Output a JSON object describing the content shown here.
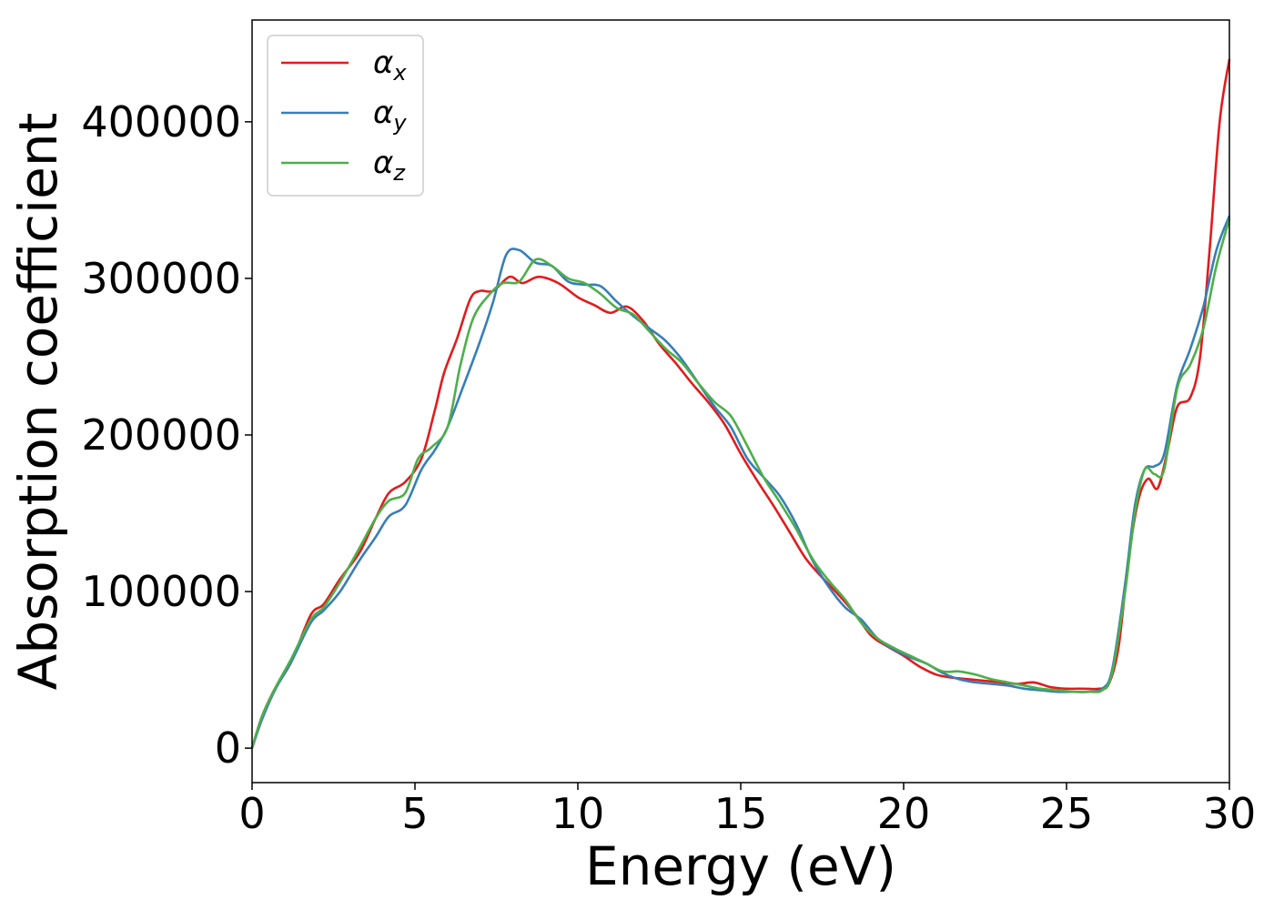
{
  "chart_data": {
    "type": "line",
    "title": "",
    "xlabel": "Energy (eV)",
    "ylabel": "Absorption coefficient",
    "xlim": [
      0,
      30
    ],
    "ylim": [
      -22000,
      465000
    ],
    "x_ticks": [
      0,
      5,
      10,
      15,
      20,
      25,
      30
    ],
    "y_ticks": [
      0,
      100000,
      200000,
      300000,
      400000
    ],
    "x_tick_labels": [
      "0",
      "5",
      "10",
      "15",
      "20",
      "25",
      "30"
    ],
    "y_tick_labels": [
      "0",
      "100000",
      "200000",
      "300000",
      "400000"
    ],
    "grid": false,
    "legend": "top-left",
    "series": [
      {
        "name": "α",
        "subscript": "x",
        "color": "#e41a1c",
        "points": [
          [
            0,
            0
          ],
          [
            0.3,
            20000
          ],
          [
            0.7,
            38000
          ],
          [
            1.2,
            55000
          ],
          [
            1.8,
            85000
          ],
          [
            2.2,
            92000
          ],
          [
            2.7,
            108000
          ],
          [
            3.3,
            125000
          ],
          [
            3.8,
            147000
          ],
          [
            4.2,
            163000
          ],
          [
            4.7,
            170000
          ],
          [
            5.2,
            185000
          ],
          [
            5.6,
            215000
          ],
          [
            5.9,
            240000
          ],
          [
            6.3,
            262000
          ],
          [
            6.7,
            287000
          ],
          [
            7.0,
            292000
          ],
          [
            7.4,
            292000
          ],
          [
            7.9,
            301000
          ],
          [
            8.3,
            297000
          ],
          [
            8.8,
            301000
          ],
          [
            9.4,
            297000
          ],
          [
            10.0,
            288000
          ],
          [
            10.5,
            283000
          ],
          [
            11.0,
            278000
          ],
          [
            11.5,
            282000
          ],
          [
            12.0,
            273000
          ],
          [
            12.5,
            258000
          ],
          [
            13.0,
            246000
          ],
          [
            13.5,
            233000
          ],
          [
            14.0,
            221000
          ],
          [
            14.5,
            207000
          ],
          [
            15.0,
            188000
          ],
          [
            15.5,
            171000
          ],
          [
            16.0,
            155000
          ],
          [
            16.5,
            138000
          ],
          [
            17.0,
            121000
          ],
          [
            17.5,
            109000
          ],
          [
            18.0,
            98000
          ],
          [
            18.5,
            86000
          ],
          [
            19.0,
            72000
          ],
          [
            19.5,
            65000
          ],
          [
            20.0,
            59000
          ],
          [
            20.5,
            52000
          ],
          [
            21.0,
            47000
          ],
          [
            21.5,
            45000
          ],
          [
            22.0,
            44000
          ],
          [
            22.5,
            43000
          ],
          [
            23.0,
            42000
          ],
          [
            23.5,
            41000
          ],
          [
            24.0,
            42000
          ],
          [
            24.5,
            39000
          ],
          [
            25.0,
            38000
          ],
          [
            25.5,
            38000
          ],
          [
            26.0,
            38000
          ],
          [
            26.3,
            41000
          ],
          [
            26.6,
            65000
          ],
          [
            26.9,
            120000
          ],
          [
            27.2,
            158000
          ],
          [
            27.5,
            172000
          ],
          [
            27.8,
            166000
          ],
          [
            28.1,
            190000
          ],
          [
            28.4,
            218000
          ],
          [
            28.8,
            224000
          ],
          [
            29.1,
            250000
          ],
          [
            29.4,
            320000
          ],
          [
            29.7,
            400000
          ],
          [
            30.0,
            440000
          ]
        ]
      },
      {
        "name": "α",
        "subscript": "y",
        "color": "#377eb8",
        "points": [
          [
            0,
            0
          ],
          [
            0.3,
            18000
          ],
          [
            0.7,
            37000
          ],
          [
            1.2,
            55000
          ],
          [
            1.8,
            80000
          ],
          [
            2.2,
            88000
          ],
          [
            2.7,
            100000
          ],
          [
            3.3,
            120000
          ],
          [
            3.8,
            135000
          ],
          [
            4.2,
            148000
          ],
          [
            4.7,
            155000
          ],
          [
            5.2,
            178000
          ],
          [
            5.6,
            190000
          ],
          [
            6.0,
            205000
          ],
          [
            6.5,
            232000
          ],
          [
            7.0,
            260000
          ],
          [
            7.4,
            285000
          ],
          [
            7.8,
            315000
          ],
          [
            8.2,
            318000
          ],
          [
            8.7,
            310000
          ],
          [
            9.2,
            308000
          ],
          [
            9.7,
            298000
          ],
          [
            10.2,
            296000
          ],
          [
            10.7,
            295000
          ],
          [
            11.2,
            285000
          ],
          [
            11.7,
            276000
          ],
          [
            12.2,
            268000
          ],
          [
            12.7,
            260000
          ],
          [
            13.2,
            248000
          ],
          [
            13.7,
            233000
          ],
          [
            14.2,
            218000
          ],
          [
            14.7,
            205000
          ],
          [
            15.2,
            185000
          ],
          [
            15.7,
            173000
          ],
          [
            16.2,
            161000
          ],
          [
            16.7,
            143000
          ],
          [
            17.2,
            120000
          ],
          [
            17.7,
            103000
          ],
          [
            18.2,
            90000
          ],
          [
            18.7,
            82000
          ],
          [
            19.2,
            70000
          ],
          [
            19.7,
            63000
          ],
          [
            20.2,
            58000
          ],
          [
            20.7,
            54000
          ],
          [
            21.2,
            48000
          ],
          [
            21.7,
            44000
          ],
          [
            22.2,
            42000
          ],
          [
            22.7,
            41000
          ],
          [
            23.2,
            40000
          ],
          [
            23.7,
            38000
          ],
          [
            24.2,
            37000
          ],
          [
            24.7,
            36000
          ],
          [
            25.2,
            36000
          ],
          [
            25.7,
            36000
          ],
          [
            26.1,
            38000
          ],
          [
            26.4,
            50000
          ],
          [
            26.8,
            105000
          ],
          [
            27.1,
            155000
          ],
          [
            27.4,
            178000
          ],
          [
            27.7,
            180000
          ],
          [
            28.0,
            188000
          ],
          [
            28.4,
            232000
          ],
          [
            28.8,
            255000
          ],
          [
            29.2,
            282000
          ],
          [
            29.6,
            318000
          ],
          [
            30.0,
            340000
          ]
        ]
      },
      {
        "name": "α",
        "subscript": "z",
        "color": "#4daf4a",
        "points": [
          [
            0,
            0
          ],
          [
            0.3,
            20000
          ],
          [
            0.7,
            38000
          ],
          [
            1.2,
            57000
          ],
          [
            1.8,
            82000
          ],
          [
            2.2,
            90000
          ],
          [
            2.7,
            106000
          ],
          [
            3.3,
            128000
          ],
          [
            3.8,
            147000
          ],
          [
            4.2,
            158000
          ],
          [
            4.7,
            163000
          ],
          [
            5.1,
            185000
          ],
          [
            5.5,
            192000
          ],
          [
            6.0,
            205000
          ],
          [
            6.4,
            245000
          ],
          [
            6.8,
            275000
          ],
          [
            7.3,
            290000
          ],
          [
            7.7,
            297000
          ],
          [
            8.2,
            298000
          ],
          [
            8.7,
            312000
          ],
          [
            9.2,
            308000
          ],
          [
            9.7,
            300000
          ],
          [
            10.2,
            297000
          ],
          [
            10.7,
            290000
          ],
          [
            11.2,
            281000
          ],
          [
            11.7,
            277000
          ],
          [
            12.2,
            266000
          ],
          [
            12.7,
            255000
          ],
          [
            13.2,
            246000
          ],
          [
            13.7,
            233000
          ],
          [
            14.2,
            221000
          ],
          [
            14.7,
            212000
          ],
          [
            15.2,
            193000
          ],
          [
            15.7,
            173000
          ],
          [
            16.2,
            157000
          ],
          [
            16.7,
            140000
          ],
          [
            17.2,
            121000
          ],
          [
            17.7,
            107000
          ],
          [
            18.2,
            95000
          ],
          [
            18.7,
            80000
          ],
          [
            19.2,
            70000
          ],
          [
            19.7,
            64000
          ],
          [
            20.2,
            59000
          ],
          [
            20.7,
            54000
          ],
          [
            21.2,
            49000
          ],
          [
            21.7,
            49000
          ],
          [
            22.2,
            47000
          ],
          [
            22.7,
            44000
          ],
          [
            23.2,
            42000
          ],
          [
            23.7,
            40000
          ],
          [
            24.2,
            38000
          ],
          [
            24.7,
            37000
          ],
          [
            25.2,
            36000
          ],
          [
            25.7,
            36000
          ],
          [
            26.1,
            37000
          ],
          [
            26.4,
            48000
          ],
          [
            26.8,
            100000
          ],
          [
            27.1,
            150000
          ],
          [
            27.4,
            178000
          ],
          [
            27.7,
            175000
          ],
          [
            28.0,
            178000
          ],
          [
            28.4,
            230000
          ],
          [
            28.8,
            245000
          ],
          [
            29.2,
            268000
          ],
          [
            29.6,
            308000
          ],
          [
            30.0,
            338000
          ]
        ]
      }
    ]
  }
}
